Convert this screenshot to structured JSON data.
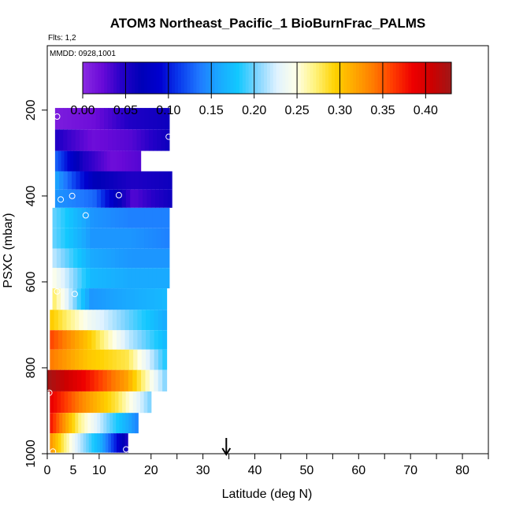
{
  "chart_data": {
    "type": "heatmap",
    "title": "ATOM3 Northeast_Pacific_1 BioBurnFrac_PALMS",
    "flights_label": "Flts: 1,2",
    "dates_label": "MMDD: 0928,1001",
    "xlabel": "Latitude (deg N)",
    "ylabel": "PSXC (mbar)",
    "xlim": [
      0,
      85
    ],
    "ylim": [
      1000,
      50
    ],
    "x_ticks": [
      0,
      5,
      10,
      20,
      30,
      40,
      50,
      60,
      70,
      80
    ],
    "x_minor_ticks": [
      25,
      35,
      45,
      55,
      65,
      75,
      85
    ],
    "y_ticks": [
      200,
      400,
      600,
      800,
      1000
    ],
    "colorbar": {
      "min": 0.0,
      "max": 0.43,
      "ticks": [
        "0.00",
        "0.05",
        "0.10",
        "0.15",
        "0.20",
        "0.25",
        "0.30",
        "0.35",
        "0.40"
      ],
      "colors": [
        "#8a2be2",
        "#6a0ad8",
        "#2600c8",
        "#0000b8",
        "#0000d0",
        "#0a3cee",
        "#1f78ff",
        "#1aa8ff",
        "#12c8ff",
        "#7fd4ff",
        "#dff2ff",
        "#ffffe8",
        "#fff27a",
        "#ffd200",
        "#ffa800",
        "#ff7a00",
        "#ff3a00",
        "#ee0000",
        "#cc0000",
        "#a01818"
      ]
    },
    "marker_latitude": 34.5,
    "rows": [
      {
        "p": 220,
        "lat_start": 1.5,
        "lat_end": 23.5,
        "values": [
          0.01,
          0.02,
          0.05,
          0.06
        ]
      },
      {
        "p": 270,
        "lat_start": 1.5,
        "lat_end": 23.5,
        "values": [
          0.05,
          0.02,
          0.03,
          0.06
        ]
      },
      {
        "p": 320,
        "lat_start": 1.5,
        "lat_end": 18.0,
        "values": [
          0.13,
          0.05,
          0.02,
          0.03
        ]
      },
      {
        "p": 365,
        "lat_start": 1.5,
        "lat_end": 24.0,
        "values": [
          0.16,
          0.07,
          0.05,
          0.06
        ]
      },
      {
        "p": 405,
        "lat_start": 1.5,
        "lat_end": 24.0,
        "values": [
          0.15,
          0.13,
          0.03,
          0.06
        ]
      },
      {
        "p": 450,
        "lat_start": 1.0,
        "lat_end": 23.5,
        "values": [
          0.2,
          0.15,
          0.14,
          0.14
        ]
      },
      {
        "p": 500,
        "lat_start": 1.0,
        "lat_end": 23.5,
        "values": [
          0.2,
          0.15,
          0.15,
          0.14
        ]
      },
      {
        "p": 545,
        "lat_start": 1.0,
        "lat_end": 23.5,
        "values": [
          0.22,
          0.16,
          0.15,
          0.15
        ]
      },
      {
        "p": 590,
        "lat_start": 1.0,
        "lat_end": 23.5,
        "values": [
          0.25,
          0.17,
          0.16,
          0.16
        ]
      },
      {
        "p": 640,
        "lat_start": 1.0,
        "lat_end": 23.0,
        "values": [
          0.28,
          0.15,
          0.16,
          0.17
        ]
      },
      {
        "p": 690,
        "lat_start": 0.5,
        "lat_end": 23.0,
        "values": [
          0.3,
          0.24,
          0.2,
          0.16
        ]
      },
      {
        "p": 735,
        "lat_start": 0.5,
        "lat_end": 23.0,
        "values": [
          0.36,
          0.3,
          0.22,
          0.17
        ]
      },
      {
        "p": 780,
        "lat_start": 0.5,
        "lat_end": 23.0,
        "values": [
          0.34,
          0.3,
          0.28,
          0.18
        ]
      },
      {
        "p": 830,
        "lat_start": 0.0,
        "lat_end": 23.0,
        "values": [
          0.43,
          0.38,
          0.32,
          0.2
        ]
      },
      {
        "p": 880,
        "lat_start": 0.5,
        "lat_end": 20.0,
        "values": [
          0.39,
          0.33,
          0.28,
          0.2
        ]
      },
      {
        "p": 930,
        "lat_start": 0.5,
        "lat_end": 17.5,
        "values": [
          0.38,
          0.27,
          0.2,
          0.14
        ]
      },
      {
        "p": 975,
        "lat_start": 0.5,
        "lat_end": 15.5,
        "values": [
          0.33,
          0.23,
          0.16,
          0.05
        ]
      }
    ],
    "points": [
      {
        "lat": 1.9,
        "p": 215
      },
      {
        "lat": 23.4,
        "p": 262
      },
      {
        "lat": 2.6,
        "p": 408
      },
      {
        "lat": 4.8,
        "p": 400
      },
      {
        "lat": 13.8,
        "p": 398
      },
      {
        "lat": 7.4,
        "p": 445
      },
      {
        "lat": 1.9,
        "p": 622
      },
      {
        "lat": 5.3,
        "p": 628
      },
      {
        "lat": 0.4,
        "p": 858
      },
      {
        "lat": 1.1,
        "p": 995
      },
      {
        "lat": 15.2,
        "p": 990
      }
    ]
  }
}
